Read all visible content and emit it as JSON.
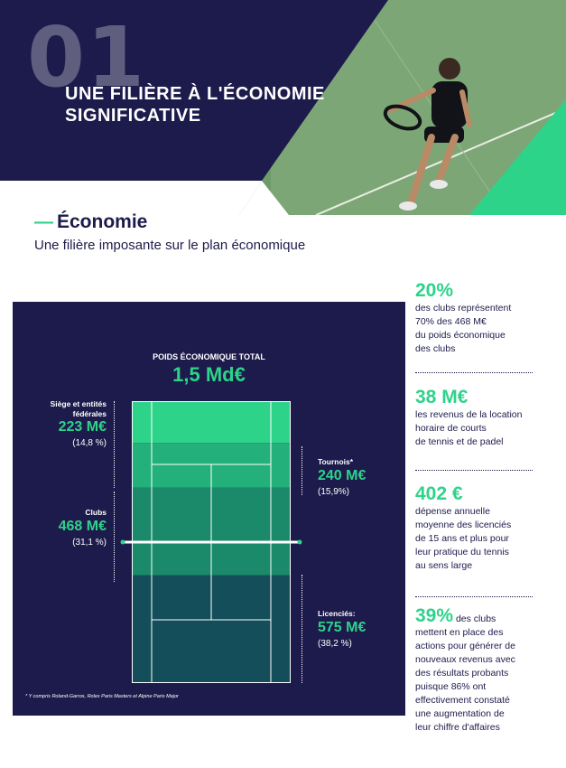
{
  "header": {
    "section_number": "01",
    "title_line1": "UNE FILIÈRE À L'ÉCONOMIE",
    "title_line2": "SIGNIFICATIVE"
  },
  "section": {
    "title": "Économie",
    "subtitle": "Une filière imposante sur le plan économique"
  },
  "infographic": {
    "total_label": "POIDS ÉCONOMIQUE TOTAL",
    "total_value": "1,5 Md€",
    "segments": [
      {
        "label_line1": "Siège et entités",
        "label_line2": "fédérales",
        "value": "223 M€",
        "pct": "(14,8 %)",
        "share": 14.8
      },
      {
        "label_line1": "Tournois*",
        "label_line2": "",
        "value": "240 M€",
        "pct": "(15,9%)",
        "share": 15.9
      },
      {
        "label_line1": "Clubs",
        "label_line2": "",
        "value": "468 M€",
        "pct": "(31,1 %)",
        "share": 31.1
      },
      {
        "label_line1": "Licenciés:",
        "label_line2": "",
        "value": "575 M€",
        "pct": "(38,2 %)",
        "share": 38.2
      }
    ],
    "footnote": "* Y compris Roland-Garros, Rolex Paris Masters et Alpine Paris Major",
    "colors": [
      "#2ed38a",
      "#23b07b",
      "#1a8a6a",
      "#134e5a"
    ]
  },
  "stats": [
    {
      "value": "20%",
      "lines": [
        "des clubs représentent",
        "70% des 468 M€",
        "du poids économique",
        "des clubs"
      ]
    },
    {
      "value": "38 M€",
      "lines": [
        "les revenus de la location",
        "horaire de courts",
        "de tennis et de padel"
      ]
    },
    {
      "value": "402 €",
      "lines": [
        "dépense annuelle",
        "moyenne des licenciés",
        "de 15 ans et plus pour",
        "leur pratique du tennis",
        "au sens large"
      ]
    },
    {
      "value": "39%",
      "inline": " des clubs",
      "lines": [
        "mettent en place des",
        "actions pour générer de",
        "nouveaux revenus avec",
        "des résultats probants",
        "puisque 86% ont",
        "effectivement constaté",
        "une augmentation de",
        "leur chiffre d'affaires"
      ]
    }
  ]
}
